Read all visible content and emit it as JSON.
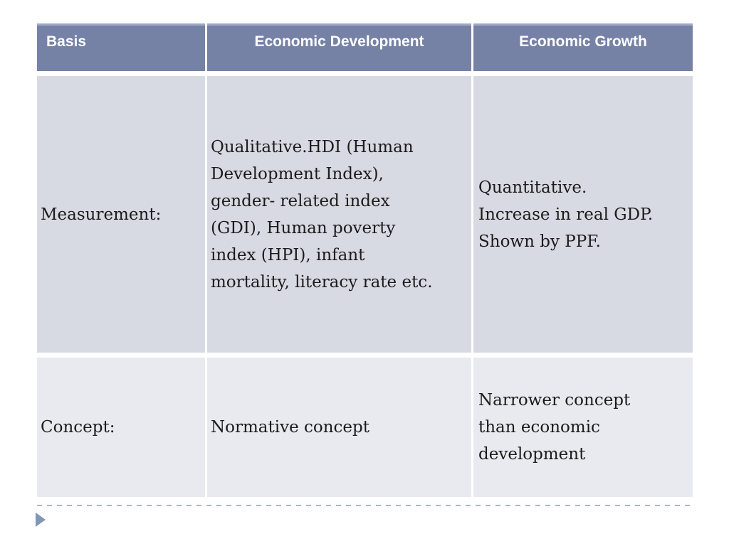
{
  "slide": {
    "table": {
      "columns": [
        {
          "label": "Basis"
        },
        {
          "label": "Economic Development"
        },
        {
          "label": "Economic Growth"
        }
      ],
      "rows": [
        {
          "basis": "Measurement:",
          "development": "Qualitative.HDI (Human\nDevelopment Index),\ngender- related index\n(GDI), Human poverty\nindex (HPI), infant\nmortality, literacy rate etc.",
          "growth": "Quantitative.\nIncrease in real GDP.\nShown by PPF."
        },
        {
          "basis": "Concept:",
          "development": "Normative concept",
          "growth": "Narrower concept\nthan economic\ndevelopment"
        }
      ]
    },
    "footer": {
      "advance_icon": "right-pointing-triangle"
    },
    "colors": {
      "header_bg": "#7682a5",
      "header_top_edge": "#9fa9c5",
      "header_text": "#ffffff",
      "row1_bg": "#d8dae3",
      "row2_bg": "#e9e9f0",
      "body_text": "#1b1b1b",
      "dashed_line": "#a6b6cf",
      "triangle": "#8195b6"
    }
  }
}
